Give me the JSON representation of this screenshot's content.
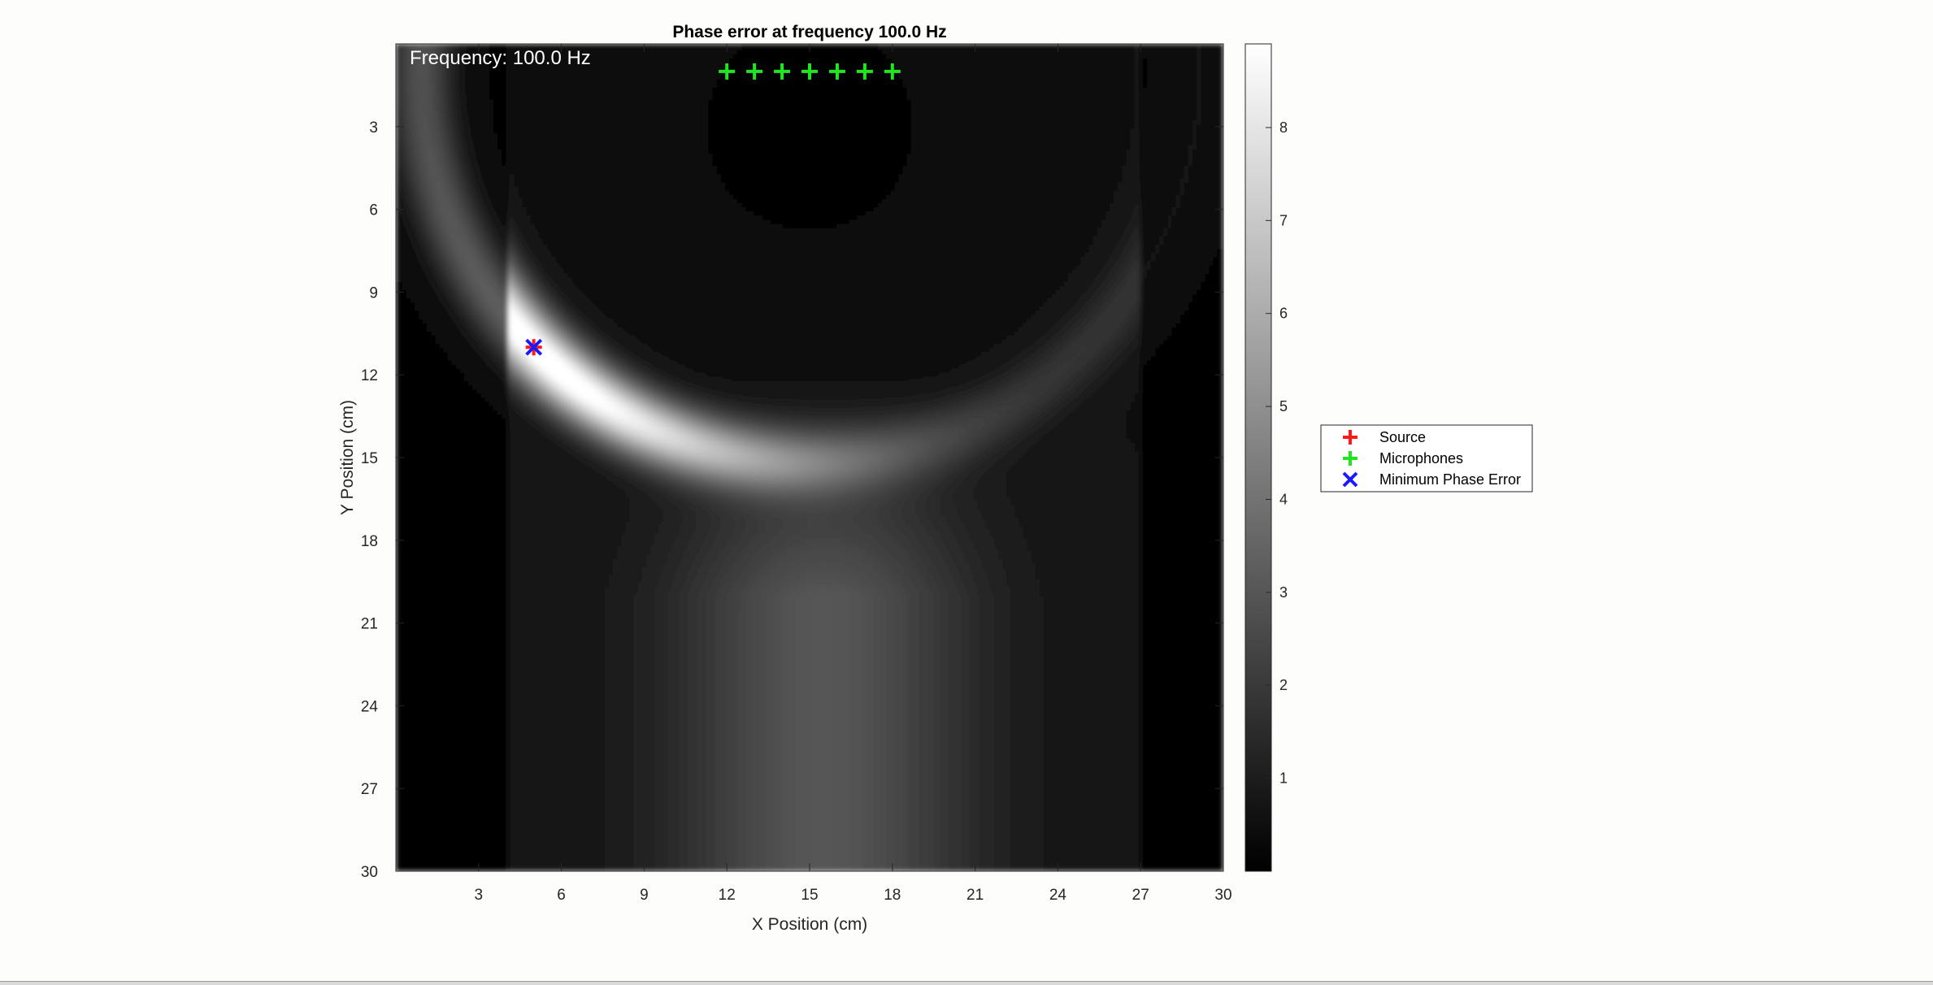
{
  "chart_data": {
    "type": "heatmap",
    "title": "Phase error at frequency 100.0 Hz",
    "annotation": "Frequency: 100.0 Hz",
    "xlabel": "X Position (cm)",
    "ylabel": "Y Position (cm)",
    "xlim": [
      0,
      30
    ],
    "ylim": [
      0,
      30
    ],
    "y_reversed": true,
    "x_ticks": [
      3,
      6,
      9,
      12,
      15,
      18,
      21,
      24,
      27,
      30
    ],
    "y_ticks": [
      3,
      6,
      9,
      12,
      15,
      18,
      21,
      24,
      27,
      30
    ],
    "colormap": "gray",
    "color_range": [
      0,
      8.9
    ],
    "colorbar_ticks": [
      1,
      2,
      3,
      4,
      5,
      6,
      7,
      8
    ],
    "grid": false,
    "legend_placement": "outside-right",
    "series": [
      {
        "name": "Source",
        "marker": "plus",
        "color": "#ff1a1a",
        "points": []
      },
      {
        "name": "Microphones",
        "marker": "plus",
        "color": "#22e522",
        "points": [
          [
            12,
            1
          ],
          [
            13,
            1
          ],
          [
            14,
            1
          ],
          [
            15,
            1
          ],
          [
            16,
            1
          ],
          [
            17,
            1
          ],
          [
            18,
            1
          ]
        ]
      },
      {
        "name": "Minimum Phase Error",
        "marker": "x",
        "color": "#1a1aff",
        "points": [
          [
            5,
            11
          ]
        ]
      }
    ],
    "source_location_overlay": [
      5,
      11
    ]
  }
}
